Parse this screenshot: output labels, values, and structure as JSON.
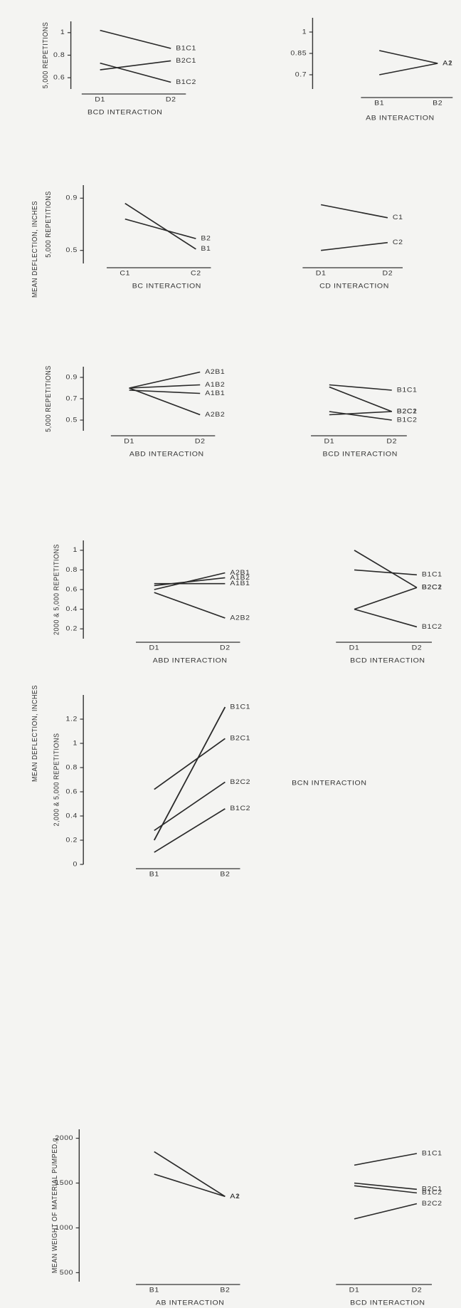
{
  "page_labels": [
    "MEAN DEFLECTION, INCHES",
    "MEAN DEFLECTION, INCHES"
  ],
  "chart_data": [
    {
      "type": "line",
      "title": "BCD INTERACTION",
      "ylabel": "5,000 REPETITIONS",
      "categories": [
        "D1",
        "D2"
      ],
      "color": "#2a2a2a",
      "series": [
        {
          "name": "B1C1",
          "values": [
            1.02,
            0.86
          ]
        },
        {
          "name": "B2C1",
          "values": [
            0.67,
            0.75
          ]
        },
        {
          "name": "B1C2",
          "values": [
            0.73,
            0.56
          ]
        }
      ],
      "ylim": [
        0.5,
        1.1
      ],
      "yticks": [
        0.6,
        0.8,
        1.0
      ]
    },
    {
      "type": "line",
      "title": "AB INTERACTION",
      "categories": [
        "B1",
        "B2"
      ],
      "color": "#2a2a2a",
      "series": [
        {
          "name": "A1",
          "values": [
            0.87,
            0.78
          ]
        },
        {
          "name": "A2",
          "values": [
            0.7,
            0.78
          ]
        }
      ],
      "ylim": [
        0.6,
        1.1
      ],
      "yticks": [
        0.7,
        0.85,
        1.0
      ]
    },
    {
      "type": "line",
      "title": "BC INTERACTION",
      "ylabel": "5,000 REPETITIONS",
      "categories": [
        "C1",
        "C2"
      ],
      "color": "#2a2a2a",
      "series": [
        {
          "name": "B1",
          "values": [
            0.86,
            0.51
          ]
        },
        {
          "name": "B2",
          "values": [
            0.74,
            0.59
          ]
        }
      ],
      "ylim": [
        0.4,
        1.0
      ],
      "yticks": [
        0.5,
        0.9
      ]
    },
    {
      "type": "line",
      "title": "CD INTERACTION",
      "categories": [
        "D1",
        "D2"
      ],
      "color": "#2a2a2a",
      "series": [
        {
          "name": "C1",
          "values": [
            0.85,
            0.75
          ]
        },
        {
          "name": "C2",
          "values": [
            0.5,
            0.56
          ]
        }
      ],
      "ylim": [
        0.4,
        1.0
      ]
    },
    {
      "type": "line",
      "title": "ABD INTERACTION",
      "ylabel": "5,000 REPETITIONS",
      "categories": [
        "D1",
        "D2"
      ],
      "color": "#2a2a2a",
      "series": [
        {
          "name": "A2B1",
          "values": [
            0.8,
            0.95
          ]
        },
        {
          "name": "A1B2",
          "values": [
            0.8,
            0.83
          ]
        },
        {
          "name": "A1B1",
          "values": [
            0.78,
            0.75
          ]
        },
        {
          "name": "A2B2",
          "values": [
            0.8,
            0.55
          ]
        }
      ],
      "ylim": [
        0.4,
        1.0
      ],
      "yticks": [
        0.5,
        0.7,
        0.9
      ]
    },
    {
      "type": "line",
      "title": "BCD INTERACTION",
      "categories": [
        "D1",
        "D2"
      ],
      "color": "#2a2a2a",
      "series": [
        {
          "name": "B2C1",
          "values": [
            0.81,
            0.58
          ]
        },
        {
          "name": "B1C1",
          "values": [
            0.83,
            0.78
          ]
        },
        {
          "name": "B2C2",
          "values": [
            0.55,
            0.58
          ]
        },
        {
          "name": "B1C2",
          "values": [
            0.58,
            0.5
          ]
        }
      ],
      "ylim": [
        0.4,
        1.0
      ]
    },
    {
      "type": "line",
      "title": "ABD INTERACTION",
      "ylabel": "2000 & 5,000 REPETITIONS",
      "categories": [
        "D1",
        "D2"
      ],
      "color": "#2a2a2a",
      "series": [
        {
          "name": "A2B1",
          "values": [
            0.6,
            0.77
          ]
        },
        {
          "name": "A1B2",
          "values": [
            0.64,
            0.72
          ]
        },
        {
          "name": "A1B1",
          "values": [
            0.66,
            0.66
          ]
        },
        {
          "name": "A2B2",
          "values": [
            0.57,
            0.31
          ]
        }
      ],
      "ylim": [
        0.1,
        1.1
      ],
      "yticks": [
        0.2,
        0.4,
        0.6,
        0.8,
        1.0
      ]
    },
    {
      "type": "line",
      "title": "BCD INTERACTION",
      "categories": [
        "D1",
        "D2"
      ],
      "color": "#2a2a2a",
      "series": [
        {
          "name": "B2C1",
          "values": [
            1.0,
            0.62
          ]
        },
        {
          "name": "B1C1",
          "values": [
            0.8,
            0.75
          ]
        },
        {
          "name": "B2C2",
          "values": [
            0.4,
            0.62
          ]
        },
        {
          "name": "B1C2",
          "values": [
            0.4,
            0.22
          ]
        }
      ],
      "ylim": [
        0.1,
        1.1
      ]
    },
    {
      "type": "line",
      "title": "BCN INTERACTION",
      "ylabel": "2,000 & 5,000 REPETITIONS",
      "categories": [
        "B1",
        "B2"
      ],
      "color": "#2a2a2a",
      "series": [
        {
          "name": "B1C1",
          "values": [
            0.2,
            1.3
          ]
        },
        {
          "name": "B2C1",
          "values": [
            0.62,
            1.04
          ]
        },
        {
          "name": "B2C2",
          "values": [
            0.28,
            0.68
          ]
        },
        {
          "name": "B1C2",
          "values": [
            0.1,
            0.46
          ]
        }
      ],
      "ylim": [
        0,
        1.4
      ],
      "yticks": [
        0,
        0.2,
        0.4,
        0.6,
        0.8,
        1.0,
        1.2
      ]
    },
    {
      "type": "line",
      "title": "AB INTERACTION",
      "ylabel": "MEAN WEIGHT OF MATERIAL PUMPED,g",
      "categories": [
        "B1",
        "B2"
      ],
      "color": "#2a2a2a",
      "series": [
        {
          "name": "A1",
          "values": [
            1850,
            1350
          ]
        },
        {
          "name": "A2",
          "values": [
            1600,
            1350
          ]
        }
      ],
      "ylim": [
        400,
        2100
      ],
      "yticks": [
        500,
        1000,
        1500,
        2000
      ]
    },
    {
      "type": "line",
      "title": "BCD INTERACTION",
      "categories": [
        "D1",
        "D2"
      ],
      "color": "#2a2a2a",
      "series": [
        {
          "name": "B1C1",
          "values": [
            1700,
            1830
          ]
        },
        {
          "name": "B2C1",
          "values": [
            1500,
            1430
          ]
        },
        {
          "name": "B1C2",
          "values": [
            1470,
            1390
          ]
        },
        {
          "name": "B2C2",
          "values": [
            1100,
            1270
          ]
        }
      ],
      "ylim": [
        400,
        2100
      ]
    }
  ]
}
